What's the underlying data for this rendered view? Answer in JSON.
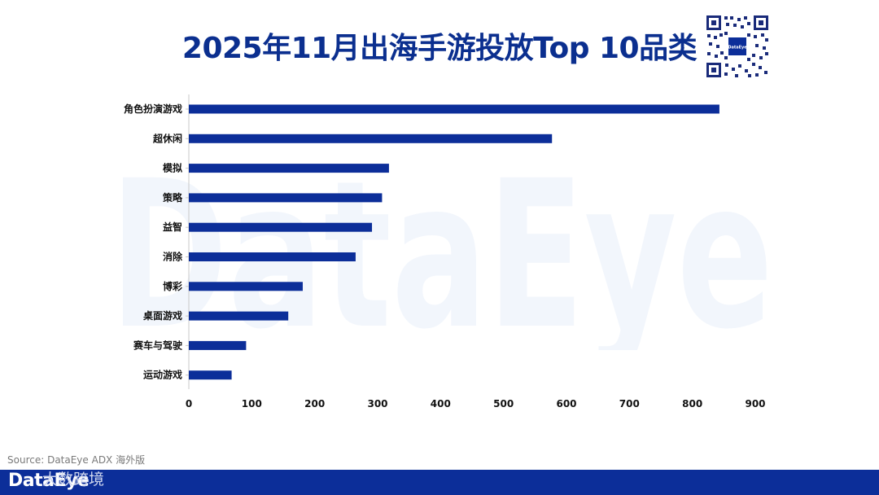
{
  "title": "2025年11月出海手游投放Top 10品类",
  "source": "Source: DataEye ADX 海外版",
  "footer": {
    "brand": "DataEye",
    "brand_cn": "大数跨境"
  },
  "qr_label": "DataEye",
  "watermark_text": "DataEye",
  "colors": {
    "bar": "#0c2e99",
    "title": "#0b2f8f",
    "footer": "#0c2e99"
  },
  "chart_data": {
    "type": "bar",
    "orientation": "horizontal",
    "title": "2025年11月出海手游投放Top 10品类",
    "categories": [
      "角色扮演游戏",
      "超休闲",
      "模拟",
      "策略",
      "益智",
      "消除",
      "博彩",
      "桌面游戏",
      "赛车与驾驶",
      "运动游戏"
    ],
    "values": [
      843,
      577,
      318,
      307,
      291,
      265,
      181,
      158,
      91,
      68
    ],
    "xlim": [
      0,
      900
    ],
    "xticks": [
      0,
      100,
      200,
      300,
      400,
      500,
      600,
      700,
      800,
      900
    ],
    "grid": false,
    "legend": "none"
  }
}
